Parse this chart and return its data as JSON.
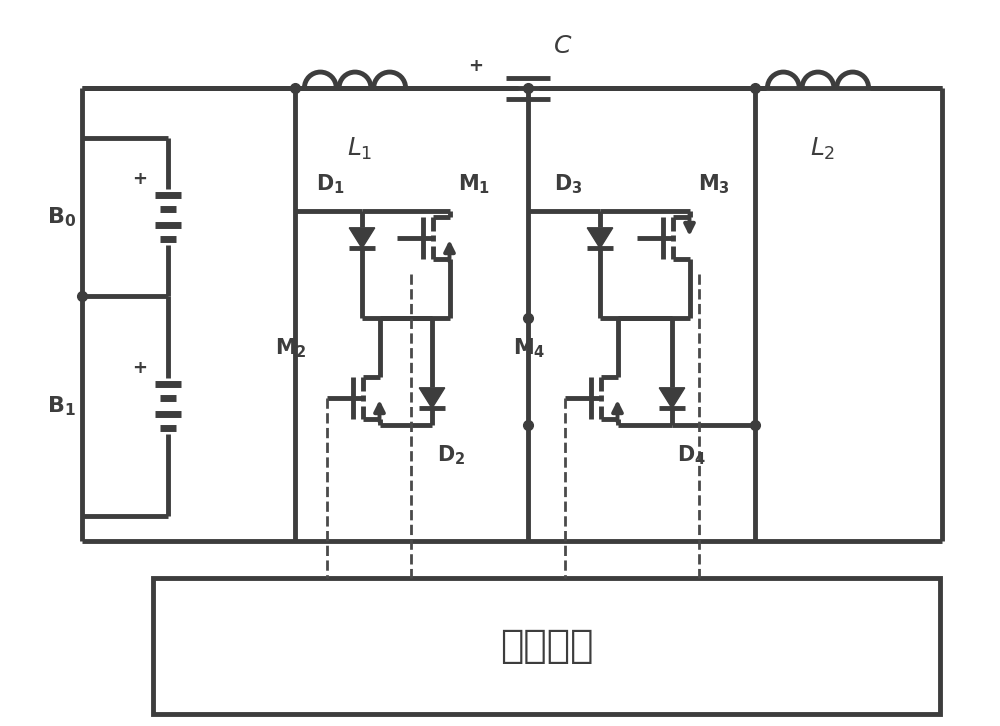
{
  "bg_color": "#ffffff",
  "line_color": "#3d3d3d",
  "lw": 3.5,
  "lw_thin": 2.0,
  "fig_w": 10.0,
  "fig_h": 7.26,
  "controller_label": "微控制器",
  "xlim": [
    0,
    10
  ],
  "ylim": [
    0,
    7.26
  ]
}
